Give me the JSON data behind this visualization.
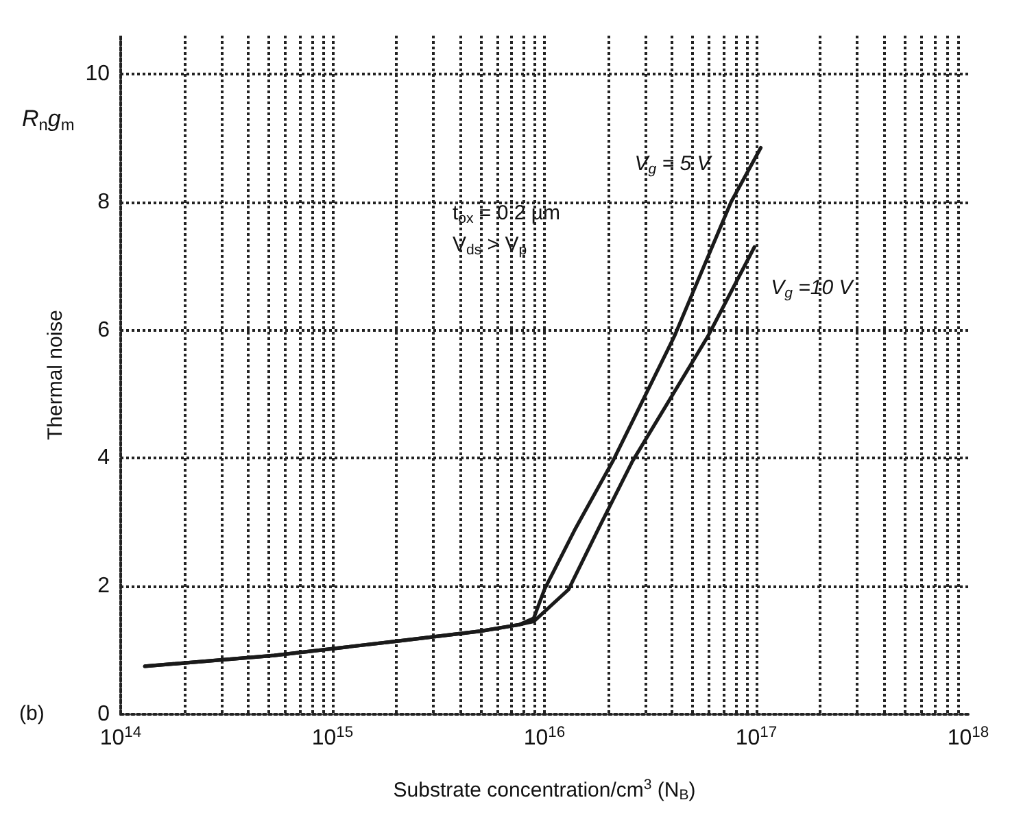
{
  "chart_data": {
    "type": "line",
    "xlabel": "Substrate concentration/cm$^{3}$ (N$_{B}$)",
    "ylabel": "Thermal noise",
    "annotations": [
      "R$_{n}$g$_{m}$",
      "t$_{ox}$ = 0.2 µm",
      "V$_{ds}$ > V$_{p}$",
      "(b)"
    ],
    "log": "x",
    "grid": true,
    "legend": false,
    "marker": "none",
    "line_style": "solid",
    "xlim": [
      100000000000000.0,
      1e+18
    ],
    "ylim": [
      0,
      10.6
    ],
    "xticks": [
      {
        "value": 100000000000000.0,
        "label": "10$^{14}$"
      },
      {
        "value": 200000000000000.0,
        "label": null
      },
      {
        "value": 300000000000000.0,
        "label": null
      },
      {
        "value": 400000000000000.0,
        "label": null
      },
      {
        "value": 500000000000000.0,
        "label": null
      },
      {
        "value": 600000000000000.0,
        "label": null
      },
      {
        "value": 700000000000000.0,
        "label": null
      },
      {
        "value": 800000000000000.0,
        "label": null
      },
      {
        "value": 900000000000000.0,
        "label": null
      },
      {
        "value": 1000000000000000.0,
        "label": "10$^{15}$"
      },
      {
        "value": 2000000000000000.0,
        "label": null
      },
      {
        "value": 3000000000000000.0,
        "label": null
      },
      {
        "value": 4000000000000000.0,
        "label": null
      },
      {
        "value": 5000000000000000.0,
        "label": null
      },
      {
        "value": 6000000000000000.0,
        "label": null
      },
      {
        "value": 7000000000000000.0,
        "label": null
      },
      {
        "value": 8000000000000000.0,
        "label": null
      },
      {
        "value": 9000000000000000.0,
        "label": null
      },
      {
        "value": 1e+16,
        "label": "10$^{16}$"
      },
      {
        "value": 2e+16,
        "label": null
      },
      {
        "value": 3e+16,
        "label": null
      },
      {
        "value": 4e+16,
        "label": null
      },
      {
        "value": 5e+16,
        "label": null
      },
      {
        "value": 6e+16,
        "label": null
      },
      {
        "value": 7e+16,
        "label": null
      },
      {
        "value": 8e+16,
        "label": null
      },
      {
        "value": 9e+16,
        "label": null
      },
      {
        "value": 1e+17,
        "label": "10$^{17}$"
      },
      {
        "value": 2e+17,
        "label": null
      },
      {
        "value": 3e+17,
        "label": null
      },
      {
        "value": 4e+17,
        "label": null
      },
      {
        "value": 5e+17,
        "label": null
      },
      {
        "value": 6e+17,
        "label": null
      },
      {
        "value": 7e+17,
        "label": null
      },
      {
        "value": 8e+17,
        "label": null
      },
      {
        "value": 9e+17,
        "label": null
      },
      {
        "value": 1e+18,
        "label": "10$^{18}$"
      }
    ],
    "yticks": [
      0,
      2,
      4,
      6,
      8,
      10
    ],
    "series": [
      {
        "name": "V$_{g}$ = 5 V",
        "color": "#1a1a1a",
        "x": [
          130000000000000.0,
          530000000000000.0,
          2100000000000000.0,
          5000000000000000.0,
          7600000000000000.0,
          8900000000000000.0,
          1e+16,
          1.4e+16,
          2.1e+16,
          4.1e+16,
          7.6e+16,
          1.05e+17
        ],
        "values": [
          0.75,
          0.92,
          1.15,
          1.3,
          1.4,
          1.5,
          1.95,
          2.9,
          3.95,
          5.9,
          8.0,
          8.85
        ]
      },
      {
        "name": "V$_{g}$ =10 V",
        "color": "#1a1a1a",
        "x": [
          130000000000000.0,
          530000000000000.0,
          2100000000000000.0,
          5000000000000000.0,
          7600000000000000.0,
          8900000000000000.0,
          1.3e+16,
          1.8e+16,
          2.6e+16,
          5.9e+16,
          9.8e+16
        ],
        "values": [
          0.75,
          0.92,
          1.15,
          1.3,
          1.4,
          1.45,
          1.95,
          2.9,
          3.95,
          5.9,
          7.3
        ]
      }
    ]
  }
}
